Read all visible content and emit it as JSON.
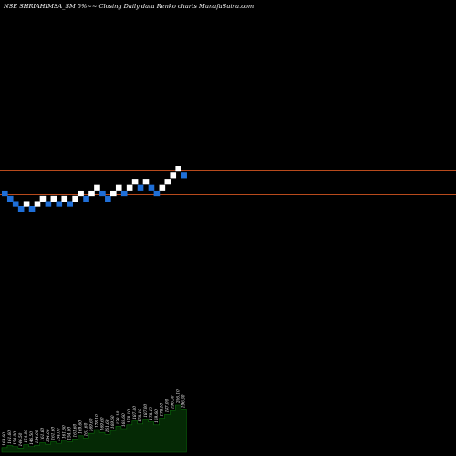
{
  "title": "NSE SHRIAHIMSA_SM 5%~~  Closing Daily data  Renko  charts MunafaSutra.com",
  "colors": {
    "background": "#000000",
    "up_brick": "#ffffff",
    "down_brick": "#1f6fd8",
    "reference_line": "#b84a1c",
    "volume_fill": "#052905",
    "volume_stroke": "#0b6d0b"
  },
  "chart_data": {
    "type": "renko",
    "brick_size": "5%",
    "bricks": [
      {
        "dir": "down",
        "price": 169.6
      },
      {
        "dir": "down",
        "price": 161.6
      },
      {
        "dir": "down",
        "price": 154.0
      },
      {
        "dir": "down",
        "price": 146.5
      },
      {
        "dir": "up",
        "price": 154.0
      },
      {
        "dir": "down",
        "price": 146.5
      },
      {
        "dir": "up",
        "price": 154.0
      },
      {
        "dir": "up",
        "price": 161.6
      },
      {
        "dir": "down",
        "price": 154.0
      },
      {
        "dir": "up",
        "price": 161.6
      },
      {
        "dir": "down",
        "price": 154.0
      },
      {
        "dir": "up",
        "price": 161.6
      },
      {
        "dir": "down",
        "price": 154.0
      },
      {
        "dir": "up",
        "price": 161.6
      },
      {
        "dir": "up",
        "price": 169.6
      },
      {
        "dir": "down",
        "price": 161.6
      },
      {
        "dir": "up",
        "price": 169.6
      },
      {
        "dir": "up",
        "price": 178.1
      },
      {
        "dir": "down",
        "price": 169.6
      },
      {
        "dir": "down",
        "price": 161.6
      },
      {
        "dir": "up",
        "price": 169.6
      },
      {
        "dir": "up",
        "price": 178.1
      },
      {
        "dir": "down",
        "price": 169.6
      },
      {
        "dir": "up",
        "price": 178.1
      },
      {
        "dir": "up",
        "price": 187.0
      },
      {
        "dir": "down",
        "price": 178.1
      },
      {
        "dir": "up",
        "price": 187.0
      },
      {
        "dir": "down",
        "price": 178.1
      },
      {
        "dir": "down",
        "price": 169.6
      },
      {
        "dir": "up",
        "price": 178.1
      },
      {
        "dir": "up",
        "price": 187.0
      },
      {
        "dir": "up",
        "price": 196.3
      },
      {
        "dir": "up",
        "price": 206.1
      },
      {
        "dir": "down",
        "price": 196.3
      }
    ],
    "reference_lines": [
      206.1,
      169.6
    ],
    "volume_labels": [
      "169.60",
      "161.60",
      "154.00",
      "146.50",
      "154.00",
      "146.50",
      "154.00",
      "161.60",
      "154.00",
      "161.60",
      "154.00",
      "161.60",
      "154.00",
      "161.60",
      "169.60",
      "161.60",
      "169.60",
      "178.10",
      "169.60",
      "161.60",
      "169.60",
      "178.10",
      "169.60",
      "178.10",
      "187.00",
      "178.10",
      "187.00",
      "178.10",
      "169.60",
      "178.10",
      "187.00",
      "196.30",
      "206.10",
      "196.30"
    ],
    "volume_levels": [
      0.1,
      0.14,
      0.12,
      0.09,
      0.16,
      0.12,
      0.15,
      0.2,
      0.17,
      0.22,
      0.19,
      0.25,
      0.22,
      0.28,
      0.35,
      0.3,
      0.4,
      0.48,
      0.42,
      0.38,
      0.46,
      0.55,
      0.5,
      0.58,
      0.66,
      0.6,
      0.7,
      0.64,
      0.58,
      0.72,
      0.8,
      0.88,
      1.0,
      0.9
    ]
  }
}
